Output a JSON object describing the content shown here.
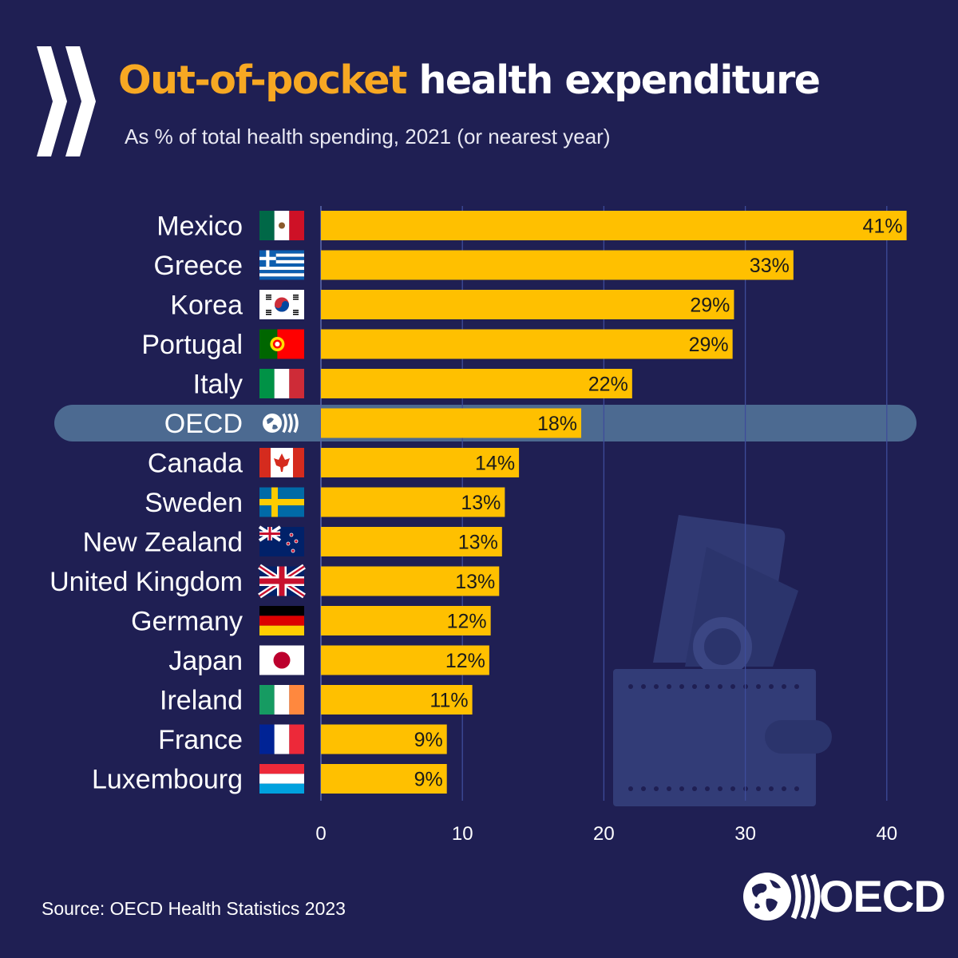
{
  "header": {
    "title_accent": "Out-of-pocket",
    "title_rest": "health expenditure",
    "subtitle": "As % of total health spending, 2021 (or nearest year)"
  },
  "colors": {
    "background": "#1f1f53",
    "bar": "#ffc000",
    "title_accent": "#f7a823",
    "highlight_row": "#4c6a91",
    "gridline": "#3e4c9a",
    "wallet_icon": "#323c77"
  },
  "chart_data": {
    "type": "bar",
    "orientation": "horizontal",
    "title": "Out-of-pocket health expenditure",
    "subtitle": "As % of total health spending, 2021 (or nearest year)",
    "xlabel": "",
    "ylabel": "",
    "xlim": [
      0,
      42
    ],
    "xticks": [
      0,
      10,
      20,
      30,
      40
    ],
    "grid": true,
    "highlight": "OECD",
    "categories": [
      "Mexico",
      "Greece",
      "Korea",
      "Portugal",
      "Italy",
      "OECD",
      "Canada",
      "Sweden",
      "New Zealand",
      "United Kingdom",
      "Germany",
      "Japan",
      "Ireland",
      "France",
      "Luxembourg"
    ],
    "values": [
      41.4,
      33.4,
      29.2,
      29.1,
      22.0,
      18.4,
      14.0,
      13.0,
      12.8,
      12.6,
      12.0,
      11.9,
      10.7,
      8.9,
      8.9
    ],
    "data_labels": [
      "41%",
      "33%",
      "29%",
      "29%",
      "22%",
      "18%",
      "14%",
      "13%",
      "13%",
      "13%",
      "12%",
      "12%",
      "11%",
      "9%",
      "9%"
    ],
    "flags": [
      "mexico-flag-icon",
      "greece-flag-icon",
      "korea-flag-icon",
      "portugal-flag-icon",
      "italy-flag-icon",
      "oecd-globe-icon",
      "canada-flag-icon",
      "sweden-flag-icon",
      "new-zealand-flag-icon",
      "united-kingdom-flag-icon",
      "germany-flag-icon",
      "japan-flag-icon",
      "ireland-flag-icon",
      "france-flag-icon",
      "luxembourg-flag-icon"
    ]
  },
  "footer": {
    "source": "Source: OECD Health Statistics 2023",
    "logo_text": "OECD",
    "logo_icon": "oecd-logo-icon"
  }
}
